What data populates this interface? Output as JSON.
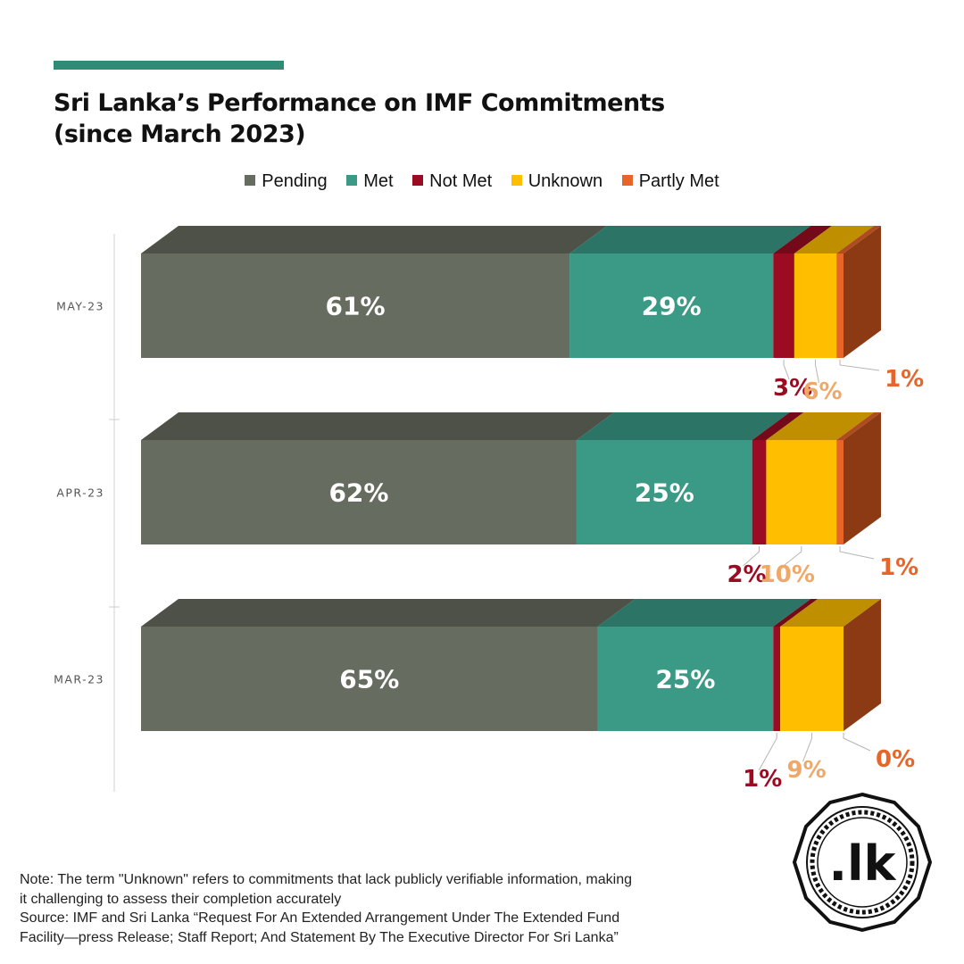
{
  "header": {
    "title_lines": [
      "Sri Lanka’s Performance on IMF Commitments",
      "(since March 2023)"
    ],
    "accent_color": "#2e8b76"
  },
  "legend": [
    {
      "label": "Pending",
      "color": "#676c60"
    },
    {
      "label": "Met",
      "color": "#3a9a86"
    },
    {
      "label": "Not Met",
      "color": "#9b0c22"
    },
    {
      "label": "Unknown",
      "color": "#ffbf00"
    },
    {
      "label": "Partly Met",
      "color": "#e8652a"
    }
  ],
  "chart_data": {
    "type": "bar",
    "orientation": "horizontal",
    "stacked": true,
    "style": "3d",
    "categories": [
      "MAY-23",
      "APR-23",
      "MAR-23"
    ],
    "series": [
      {
        "name": "Pending",
        "values": [
          61,
          62,
          65
        ],
        "labels": [
          "61%",
          "62%",
          "65%"
        ]
      },
      {
        "name": "Met",
        "values": [
          29,
          25,
          25
        ],
        "labels": [
          "29%",
          "25%",
          "25%"
        ]
      },
      {
        "name": "Not Met",
        "values": [
          3,
          2,
          1
        ],
        "labels": [
          "3%",
          "2%",
          "1%"
        ]
      },
      {
        "name": "Unknown",
        "values": [
          6,
          10,
          9
        ],
        "labels": [
          "6%",
          "10%",
          "9%"
        ]
      },
      {
        "name": "Partly Met",
        "values": [
          1,
          1,
          0
        ],
        "labels": [
          "1%",
          "1%",
          "0%"
        ]
      }
    ],
    "xlim": [
      0,
      100
    ],
    "label_colors": {
      "Not Met": "#9b0c22",
      "Unknown": "#f0a868",
      "Partly Met": "#e8652a"
    },
    "side_color": "#8b3a14"
  },
  "footer": {
    "note_lines": [
      "Note: The term \"Unknown\" refers to commitments that lack publicly verifiable information, making",
      "it challenging to assess their completion accurately",
      "Source: IMF and Sri Lanka “Request For An Extended Arrangement Under The Extended Fund",
      "Facility—press Release; Staff Report; And Statement By The Executive Director For Sri Lanka”"
    ]
  },
  "logo": {
    "text": ".lk",
    "icon": "lk-octagon-logo"
  }
}
